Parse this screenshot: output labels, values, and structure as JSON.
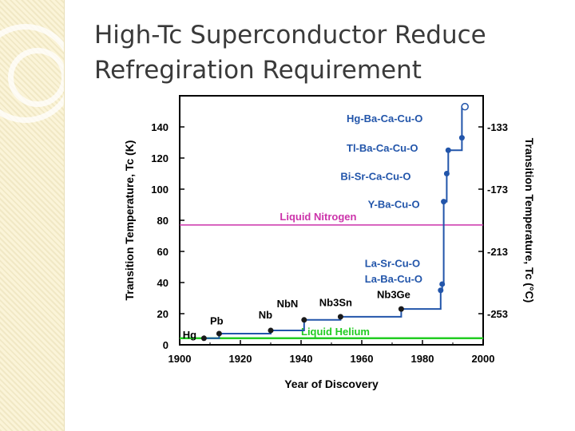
{
  "slide": {
    "title_line1": "High-Tc Superconductor Reduce",
    "title_line2": "Refregiration Requirement"
  },
  "chart_data": {
    "type": "line",
    "xlabel": "Year of Discovery",
    "ylabel": "Transition Temperature, Tc (K)",
    "ylabel_right": "Transition Temperature, Tc (°C)",
    "xlim": [
      1900,
      2000
    ],
    "ylim": [
      0,
      160
    ],
    "xticks": [
      1900,
      1920,
      1940,
      1960,
      1980,
      2000
    ],
    "yticks": [
      0,
      20,
      40,
      60,
      80,
      100,
      120,
      140
    ],
    "right_ticks": [
      {
        "kelvin": 140,
        "label": "-133"
      },
      {
        "kelvin": 100,
        "label": "-173"
      },
      {
        "kelvin": 60,
        "label": "-213"
      },
      {
        "kelvin": 20,
        "label": "-253"
      }
    ],
    "series": [
      {
        "x": [
          1908,
          1913,
          1930,
          1941,
          1953,
          1973,
          1986,
          1986.5,
          1987,
          1988,
          1988.5,
          1993
        ],
        "y": [
          4.2,
          7.2,
          9.2,
          16,
          18,
          23,
          35,
          39,
          92,
          110,
          125,
          133
        ],
        "labels": [
          "Hg",
          "Pb",
          "Nb",
          "NbN",
          "Nb3Sn",
          "Nb3Ge",
          "La-Ba-Cu-O",
          "La-Sr-Cu-O",
          "Y-Ba-Cu-O",
          "Bi-Sr-Ca-Cu-O",
          "Tl-Ba-Ca-Cu-O",
          "Hg-Ba-Ca-Cu-O"
        ]
      }
    ],
    "open_point": {
      "x": 1994,
      "y": 153
    },
    "reference_lines": [
      {
        "label": "Liquid Nitrogen",
        "y": 77,
        "color": "#cc33aa"
      },
      {
        "label": "Liquid Helium",
        "y": 4.2,
        "color": "#22cc22"
      }
    ],
    "colors": {
      "series": "#2255aa",
      "points": "#1a1a1a",
      "axis": "#000000"
    },
    "grid": false
  }
}
